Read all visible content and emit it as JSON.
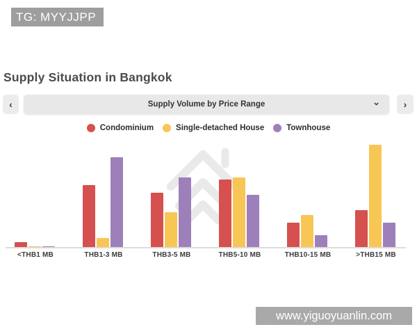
{
  "watermarks": {
    "top": "TG: MYYJJPP",
    "bottom": "www.yiguoyuanlin.com"
  },
  "header": {
    "title": "Supply Situation in Bangkok"
  },
  "carousel": {
    "prev_label": "‹",
    "next_label": "›",
    "selected": "Supply Volume by Price Range",
    "chevron": "⌄"
  },
  "chart_data": {
    "type": "bar",
    "title": "Supply Volume by Price Range",
    "categories": [
      "<THB1 MB",
      "THB1-3 MB",
      "THB3-5 MB",
      "THB5-10 MB",
      "THB10-15 MB",
      ">THB15 MB"
    ],
    "series": [
      {
        "name": "Condominium",
        "color": "#d5504e",
        "values": [
          7,
          89,
          78,
          97,
          35,
          53
        ]
      },
      {
        "name": "Single-detached House",
        "color": "#f8c654",
        "values": [
          1,
          13,
          50,
          100,
          46,
          147
        ]
      },
      {
        "name": "Townhouse",
        "color": "#9d80ba",
        "values": [
          1,
          129,
          100,
          75,
          17,
          35
        ]
      }
    ],
    "value_scale": "relative bar height (no y-axis labels shown in chart)",
    "ylim": [
      0,
      150
    ],
    "xlabel": "",
    "ylabel": "",
    "legend_position": "top",
    "grid": false
  }
}
